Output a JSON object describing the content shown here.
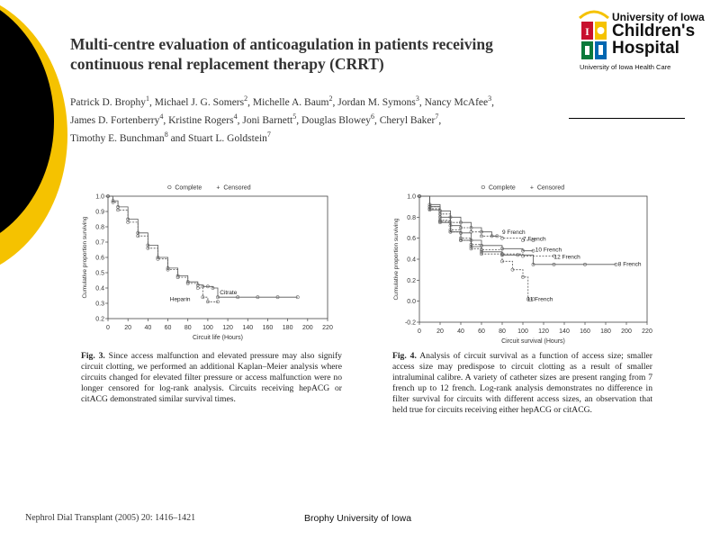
{
  "title": "Multi-centre evaluation of anticoagulation in patients receiving continuous renal replacement therapy (CRRT)",
  "authors": [
    {
      "name": "Patrick D. Brophy",
      "sup": "1"
    },
    {
      "name": "Michael J. G. Somers",
      "sup": "2"
    },
    {
      "name": "Michelle A. Baum",
      "sup": "2"
    },
    {
      "name": "Jordan M. Symons",
      "sup": "3"
    },
    {
      "name": "Nancy McAfee",
      "sup": "3"
    },
    {
      "name": "James D. Fortenberry",
      "sup": "4"
    },
    {
      "name": "Kristine Rogers",
      "sup": "4"
    },
    {
      "name": "Joni Barnett",
      "sup": "5"
    },
    {
      "name": "Douglas Blowey",
      "sup": "6"
    },
    {
      "name": "Cheryl Baker",
      "sup": "7"
    },
    {
      "name": "Timothy E. Bunchman",
      "sup": "8"
    },
    {
      "name": "Stuart L. Goldstein",
      "sup": "7"
    }
  ],
  "logo": {
    "line1": "University of Iowa",
    "line2": "Children's",
    "line3": "Hospital",
    "line4": "University of Iowa Health Care"
  },
  "captions": {
    "fig3_label": "Fig. 3.",
    "fig3_text": "Since access malfunction and elevated pressure may also signify circuit clotting, we performed an additional Kaplan–Meier analysis where circuits changed for elevated filter pressure or access malfunction were no longer censored for log-rank analysis. Circuits receiving hepACG or citACG demonstrated similar survival times.",
    "fig4_label": "Fig. 4.",
    "fig4_text": "Analysis of circuit survival as a function of access size; smaller access size may predispose to circuit clotting as a result of smaller intraluminal calibre. A variety of catheter sizes are present ranging from 7 french up to 12 french. Log-rank analysis demonstrates no difference in filter survival for circuits with different access sizes, an observation that held true for circuits receiving either hepACG or citACG."
  },
  "footer": {
    "citation": "Nephrol Dial Transplant (2005) 20: 1416–1421",
    "center": "Brophy University of Iowa"
  },
  "colors": {
    "accent_yellow": "#f5c200",
    "accent_black": "#000000"
  },
  "chart_data": [
    {
      "type": "line",
      "legend": [
        "Complete",
        "Censored"
      ],
      "legend_placement": "top",
      "xlabel": "Circuit life (Hours)",
      "ylabel": "Cumulative proportion surviving",
      "xlim": [
        0,
        220
      ],
      "ylim": [
        0.2,
        1.0
      ],
      "xticks": [
        0,
        20,
        40,
        60,
        80,
        100,
        120,
        140,
        160,
        180,
        200,
        220
      ],
      "yticks": [
        0.2,
        0.3,
        0.4,
        0.5,
        0.6,
        0.7,
        0.8,
        0.9,
        1.0
      ],
      "series": [
        {
          "name": "Citrate",
          "x": [
            0,
            5,
            10,
            20,
            30,
            40,
            50,
            60,
            70,
            80,
            90,
            95,
            100,
            105,
            110,
            130,
            150,
            170,
            190
          ],
          "y": [
            1.0,
            0.97,
            0.93,
            0.85,
            0.76,
            0.68,
            0.6,
            0.53,
            0.48,
            0.44,
            0.42,
            0.41,
            0.41,
            0.4,
            0.34,
            0.34,
            0.34,
            0.34,
            0.34
          ]
        },
        {
          "name": "Heparin",
          "x": [
            0,
            5,
            10,
            20,
            30,
            40,
            50,
            60,
            70,
            80,
            90,
            95,
            100,
            110
          ],
          "y": [
            1.0,
            0.96,
            0.91,
            0.83,
            0.74,
            0.66,
            0.59,
            0.52,
            0.47,
            0.43,
            0.4,
            0.34,
            0.31,
            0.31
          ]
        }
      ]
    },
    {
      "type": "line",
      "legend": [
        "Complete",
        "Censored"
      ],
      "legend_placement": "top",
      "xlabel": "Circuit survival (Hours)",
      "ylabel": "Cumulative proportion surviving",
      "xlim": [
        0,
        220
      ],
      "ylim": [
        -0.2,
        1.0
      ],
      "xticks": [
        0,
        20,
        40,
        60,
        80,
        100,
        120,
        140,
        160,
        180,
        200,
        220
      ],
      "yticks": [
        -0.2,
        0.0,
        0.2,
        0.4,
        0.6,
        0.8,
        1.0
      ],
      "series": [
        {
          "name": "9 French",
          "x": [
            0,
            10,
            20,
            30,
            40,
            50,
            60,
            70,
            75
          ],
          "y": [
            1.0,
            0.92,
            0.86,
            0.8,
            0.75,
            0.7,
            0.66,
            0.62,
            0.62
          ]
        },
        {
          "name": "7 French",
          "x": [
            0,
            10,
            20,
            30,
            40,
            50,
            60,
            80,
            100,
            110
          ],
          "y": [
            1.0,
            0.9,
            0.83,
            0.75,
            0.7,
            0.66,
            0.62,
            0.6,
            0.58,
            0.58
          ]
        },
        {
          "name": "10 French",
          "x": [
            0,
            10,
            20,
            30,
            40,
            50,
            60,
            80,
            100,
            110
          ],
          "y": [
            1.0,
            0.9,
            0.8,
            0.72,
            0.65,
            0.58,
            0.53,
            0.5,
            0.48,
            0.48
          ]
        },
        {
          "name": "12 French",
          "x": [
            0,
            10,
            20,
            30,
            40,
            50,
            60,
            80,
            100,
            130
          ],
          "y": [
            1.0,
            0.88,
            0.77,
            0.68,
            0.6,
            0.54,
            0.49,
            0.45,
            0.43,
            0.43
          ]
        },
        {
          "name": "8 French",
          "x": [
            0,
            10,
            20,
            30,
            40,
            50,
            60,
            80,
            95,
            110,
            130,
            160,
            190
          ],
          "y": [
            1.0,
            0.87,
            0.75,
            0.66,
            0.58,
            0.52,
            0.47,
            0.44,
            0.44,
            0.35,
            0.35,
            0.35,
            0.35
          ]
        },
        {
          "name": "11 French",
          "x": [
            0,
            10,
            20,
            30,
            40,
            50,
            60,
            80,
            90,
            100,
            105,
            110
          ],
          "y": [
            1.0,
            0.88,
            0.76,
            0.66,
            0.58,
            0.5,
            0.45,
            0.38,
            0.3,
            0.23,
            0.02,
            0.02
          ]
        }
      ]
    }
  ]
}
